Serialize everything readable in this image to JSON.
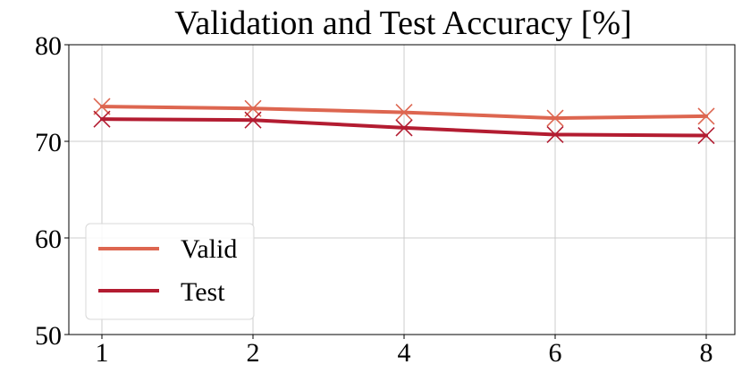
{
  "chart_data": {
    "type": "line",
    "title": "Validation and Test Accuracy [%]",
    "xlabel": "",
    "ylabel": "",
    "x": [
      1,
      2,
      4,
      6,
      8
    ],
    "x_tick_labels": [
      "1",
      "2",
      "4",
      "6",
      "8"
    ],
    "y_ticks": [
      50,
      60,
      70,
      80
    ],
    "y_tick_labels": [
      "50",
      "60",
      "70",
      "80"
    ],
    "ylim": [
      50,
      80
    ],
    "grid": true,
    "legend_position": "lower-left",
    "marker": "x",
    "series": [
      {
        "name": "Valid",
        "color": "#dd6650",
        "values": [
          73.6,
          73.4,
          73.0,
          72.4,
          72.6
        ]
      },
      {
        "name": "Test",
        "color": "#b31c31",
        "values": [
          72.3,
          72.2,
          71.4,
          70.7,
          70.6
        ]
      }
    ]
  }
}
